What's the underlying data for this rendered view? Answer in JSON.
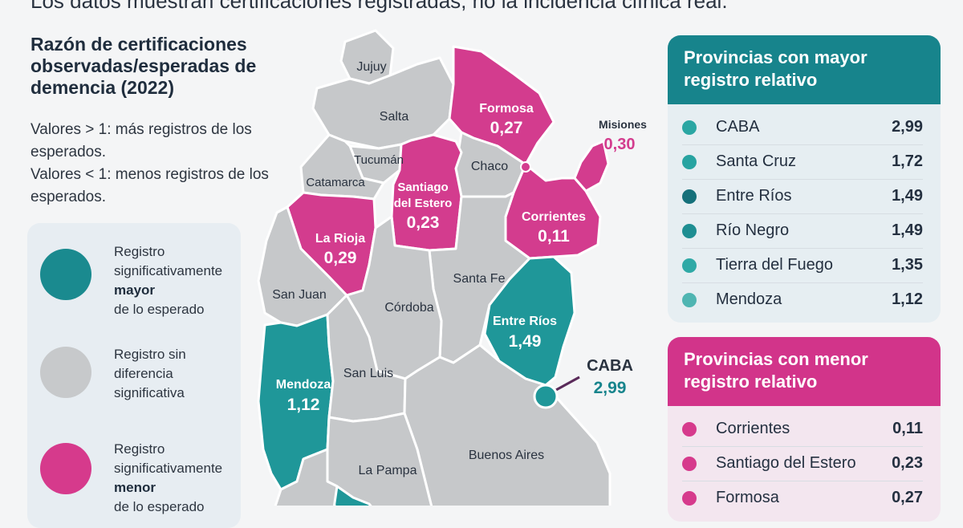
{
  "subtitle": "Los datos muestran certificaciones registradas, no la incidencia clínica real.",
  "legend": {
    "title": "Razón de certificaciones observadas/esperadas de demencia (2022)",
    "desc1": "Valores > 1: más registros de los esperados.",
    "desc2": "Valores < 1: menos registros de los esperados.",
    "items": [
      {
        "pre": "Registro significativamente",
        "bold": "mayor",
        "post": "de lo esperado",
        "color": "#1a8a8f"
      },
      {
        "pre": "Registro sin diferencia significativa",
        "bold": "",
        "post": "",
        "color": "#c7c9cb"
      },
      {
        "pre": "Registro significativamente",
        "bold": "menor",
        "post": "de lo esperado",
        "color": "#d63a8c"
      }
    ]
  },
  "map": {
    "colors": {
      "high": "#1f9799",
      "none": "#c6c8ca",
      "low": "#d33c8e",
      "border": "#ffffff"
    },
    "provinces": {
      "jujuy": "Jujuy",
      "salta": "Salta",
      "formosa": "Formosa",
      "formosa_val": "0,27",
      "misiones": "Misiones",
      "misiones_val": "0,30",
      "tucuman": "Tucumán",
      "chaco": "Chaco",
      "catamarca": "Catamarca",
      "santiago": "Santiago",
      "santiago2": "del Estero",
      "santiago_val": "0,23",
      "corrientes": "Corrientes",
      "corrientes_val": "0,11",
      "larioja": "La Rioja",
      "larioja_val": "0,29",
      "santafe": "Santa Fe",
      "sanjuan": "San Juan",
      "cordoba": "Córdoba",
      "entrerios": "Entre Ríos",
      "entrerios_val": "1,49",
      "caba": "CABA",
      "caba_val": "2,99",
      "mendoza": "Mendoza",
      "mendoza_val": "1,12",
      "sanluis": "San Luis",
      "buenosaires": "Buenos Aires",
      "lapampa": "La Pampa"
    }
  },
  "panel_high": {
    "title": "Provincias con mayor registro relativo",
    "color": "#17848c",
    "rows": [
      {
        "name": "CABA",
        "value": "2,99",
        "color": "#2aa6a3"
      },
      {
        "name": "Santa Cruz",
        "value": "1,72",
        "color": "#27a3a1"
      },
      {
        "name": "Entre Ríos",
        "value": "1,49",
        "color": "#15707a"
      },
      {
        "name": "Río Negro",
        "value": "1,49",
        "color": "#1e8e92"
      },
      {
        "name": "Tierra del Fuego",
        "value": "1,35",
        "color": "#2fa9a6"
      },
      {
        "name": "Mendoza",
        "value": "1,12",
        "color": "#4fb5b2"
      }
    ]
  },
  "panel_low": {
    "title": "Provincias con menor registro relativo",
    "color": "#d2348a",
    "rows": [
      {
        "name": "Corrientes",
        "value": "0,11",
        "color": "#d63a8c"
      },
      {
        "name": "Santiago del Estero",
        "value": "0,23",
        "color": "#d63a8c"
      },
      {
        "name": "Formosa",
        "value": "0,27",
        "color": "#d63a8c"
      }
    ]
  }
}
